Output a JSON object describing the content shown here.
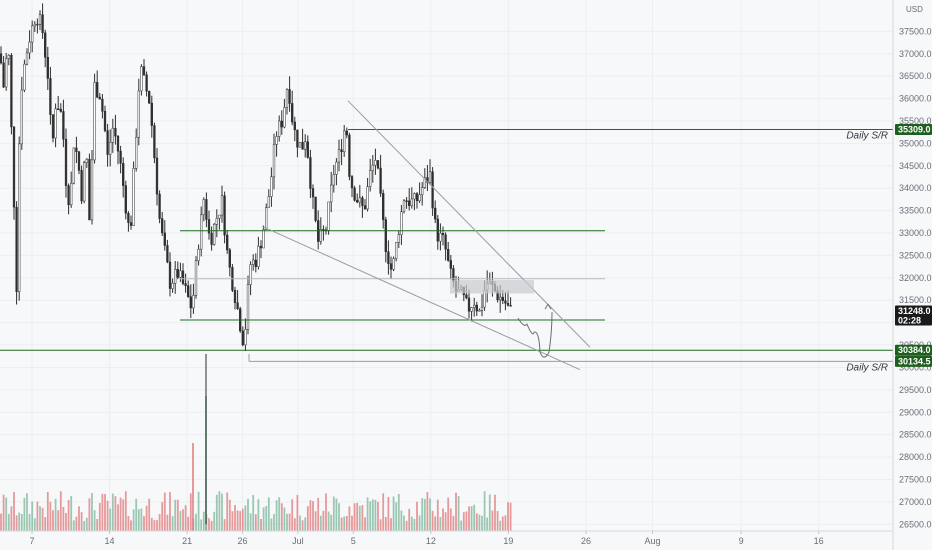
{
  "chart_data": {
    "type": "candlestick",
    "currency_label": "USD",
    "y_ticks": [
      26500,
      27000,
      27500,
      28000,
      28500,
      29000,
      29500,
      30000,
      30500,
      31000,
      31500,
      32000,
      32500,
      33000,
      33500,
      34000,
      34500,
      35000,
      35500,
      36000,
      36500,
      37000,
      37500
    ],
    "y_tick_labels": [
      "26500.0",
      "27000.0",
      "27500.0",
      "28000.0",
      "28500.0",
      "29000.0",
      "29500.0",
      "30000.0",
      "30500.0",
      "31000.0",
      "31500.0",
      "32000.0",
      "32500.0",
      "33000.0",
      "33500.0",
      "34000.0",
      "34500.0",
      "35000.0",
      "35500.0",
      "36000.0",
      "36500.0",
      "37000.0",
      "37500.0"
    ],
    "ylim": [
      26350,
      38200
    ],
    "x_ticks": [
      {
        "label": "7",
        "day": 7
      },
      {
        "label": "14",
        "day": 14
      },
      {
        "label": "21",
        "day": 21
      },
      {
        "label": "26",
        "day": 26
      },
      {
        "label": "Jul",
        "day": 31
      },
      {
        "label": "5",
        "day": 36
      },
      {
        "label": "12",
        "day": 43
      },
      {
        "label": "19",
        "day": 50
      },
      {
        "label": "26",
        "day": 57
      },
      {
        "label": "Aug",
        "day": 63
      },
      {
        "label": "9",
        "day": 71
      },
      {
        "label": "16",
        "day": 78
      }
    ],
    "price_tags": [
      {
        "value": 35309,
        "label": "35309.0",
        "color": "#1e5e1e"
      },
      {
        "value": 31248,
        "label": "31248.0",
        "sub": "02:28",
        "color": "#1a1a1a"
      },
      {
        "value": 30384,
        "label": "30384.0",
        "color": "#1e5e1e"
      },
      {
        "value": 30134.5,
        "label": "30134.5",
        "color": "#1e5e1e"
      }
    ],
    "annotations": [
      {
        "text": "Daily S/R",
        "value": 35200
      },
      {
        "text": "Daily S/R",
        "value": 30020
      }
    ],
    "colors": {
      "up": "#2e2e2e",
      "down": "#2e2e2e",
      "up_body": "#ffffff",
      "down_body": "#2e2e2e",
      "vol_up": "#7cb79a",
      "vol_down": "#e07a7a",
      "sr_line": "#1e6b1e",
      "trend": "#9a9ca3"
    }
  }
}
